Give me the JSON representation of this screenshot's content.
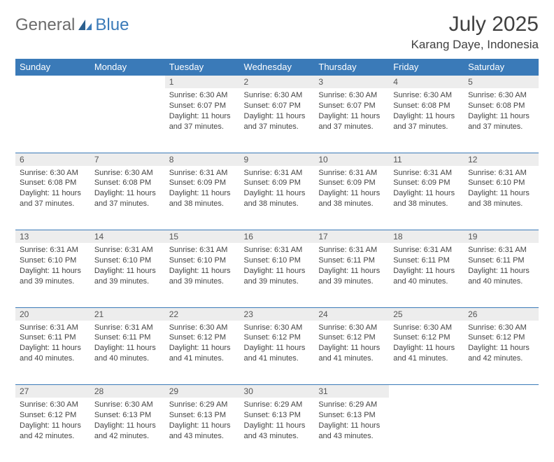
{
  "logo": {
    "text1": "General",
    "text2": "Blue"
  },
  "title": "July 2025",
  "location": "Karang Daye, Indonesia",
  "colors": {
    "header_bg": "#3a7ab8",
    "header_text": "#ffffff",
    "daynum_bg": "#ededed",
    "row_divider": "#3a7ab8",
    "body_text": "#444444",
    "logo_gray": "#6b6b6b",
    "logo_blue": "#3a7ab8"
  },
  "typography": {
    "title_fontsize": 30,
    "location_fontsize": 17,
    "header_fontsize": 13,
    "daynum_fontsize": 12,
    "cell_fontsize": 11
  },
  "day_headers": [
    "Sunday",
    "Monday",
    "Tuesday",
    "Wednesday",
    "Thursday",
    "Friday",
    "Saturday"
  ],
  "weeks": [
    [
      {
        "num": "",
        "lines": [
          "",
          "",
          "",
          ""
        ]
      },
      {
        "num": "",
        "lines": [
          "",
          "",
          "",
          ""
        ]
      },
      {
        "num": "1",
        "lines": [
          "Sunrise: 6:30 AM",
          "Sunset: 6:07 PM",
          "Daylight: 11 hours",
          "and 37 minutes."
        ]
      },
      {
        "num": "2",
        "lines": [
          "Sunrise: 6:30 AM",
          "Sunset: 6:07 PM",
          "Daylight: 11 hours",
          "and 37 minutes."
        ]
      },
      {
        "num": "3",
        "lines": [
          "Sunrise: 6:30 AM",
          "Sunset: 6:07 PM",
          "Daylight: 11 hours",
          "and 37 minutes."
        ]
      },
      {
        "num": "4",
        "lines": [
          "Sunrise: 6:30 AM",
          "Sunset: 6:08 PM",
          "Daylight: 11 hours",
          "and 37 minutes."
        ]
      },
      {
        "num": "5",
        "lines": [
          "Sunrise: 6:30 AM",
          "Sunset: 6:08 PM",
          "Daylight: 11 hours",
          "and 37 minutes."
        ]
      }
    ],
    [
      {
        "num": "6",
        "lines": [
          "Sunrise: 6:30 AM",
          "Sunset: 6:08 PM",
          "Daylight: 11 hours",
          "and 37 minutes."
        ]
      },
      {
        "num": "7",
        "lines": [
          "Sunrise: 6:30 AM",
          "Sunset: 6:08 PM",
          "Daylight: 11 hours",
          "and 37 minutes."
        ]
      },
      {
        "num": "8",
        "lines": [
          "Sunrise: 6:31 AM",
          "Sunset: 6:09 PM",
          "Daylight: 11 hours",
          "and 38 minutes."
        ]
      },
      {
        "num": "9",
        "lines": [
          "Sunrise: 6:31 AM",
          "Sunset: 6:09 PM",
          "Daylight: 11 hours",
          "and 38 minutes."
        ]
      },
      {
        "num": "10",
        "lines": [
          "Sunrise: 6:31 AM",
          "Sunset: 6:09 PM",
          "Daylight: 11 hours",
          "and 38 minutes."
        ]
      },
      {
        "num": "11",
        "lines": [
          "Sunrise: 6:31 AM",
          "Sunset: 6:09 PM",
          "Daylight: 11 hours",
          "and 38 minutes."
        ]
      },
      {
        "num": "12",
        "lines": [
          "Sunrise: 6:31 AM",
          "Sunset: 6:10 PM",
          "Daylight: 11 hours",
          "and 38 minutes."
        ]
      }
    ],
    [
      {
        "num": "13",
        "lines": [
          "Sunrise: 6:31 AM",
          "Sunset: 6:10 PM",
          "Daylight: 11 hours",
          "and 39 minutes."
        ]
      },
      {
        "num": "14",
        "lines": [
          "Sunrise: 6:31 AM",
          "Sunset: 6:10 PM",
          "Daylight: 11 hours",
          "and 39 minutes."
        ]
      },
      {
        "num": "15",
        "lines": [
          "Sunrise: 6:31 AM",
          "Sunset: 6:10 PM",
          "Daylight: 11 hours",
          "and 39 minutes."
        ]
      },
      {
        "num": "16",
        "lines": [
          "Sunrise: 6:31 AM",
          "Sunset: 6:10 PM",
          "Daylight: 11 hours",
          "and 39 minutes."
        ]
      },
      {
        "num": "17",
        "lines": [
          "Sunrise: 6:31 AM",
          "Sunset: 6:11 PM",
          "Daylight: 11 hours",
          "and 39 minutes."
        ]
      },
      {
        "num": "18",
        "lines": [
          "Sunrise: 6:31 AM",
          "Sunset: 6:11 PM",
          "Daylight: 11 hours",
          "and 40 minutes."
        ]
      },
      {
        "num": "19",
        "lines": [
          "Sunrise: 6:31 AM",
          "Sunset: 6:11 PM",
          "Daylight: 11 hours",
          "and 40 minutes."
        ]
      }
    ],
    [
      {
        "num": "20",
        "lines": [
          "Sunrise: 6:31 AM",
          "Sunset: 6:11 PM",
          "Daylight: 11 hours",
          "and 40 minutes."
        ]
      },
      {
        "num": "21",
        "lines": [
          "Sunrise: 6:31 AM",
          "Sunset: 6:11 PM",
          "Daylight: 11 hours",
          "and 40 minutes."
        ]
      },
      {
        "num": "22",
        "lines": [
          "Sunrise: 6:30 AM",
          "Sunset: 6:12 PM",
          "Daylight: 11 hours",
          "and 41 minutes."
        ]
      },
      {
        "num": "23",
        "lines": [
          "Sunrise: 6:30 AM",
          "Sunset: 6:12 PM",
          "Daylight: 11 hours",
          "and 41 minutes."
        ]
      },
      {
        "num": "24",
        "lines": [
          "Sunrise: 6:30 AM",
          "Sunset: 6:12 PM",
          "Daylight: 11 hours",
          "and 41 minutes."
        ]
      },
      {
        "num": "25",
        "lines": [
          "Sunrise: 6:30 AM",
          "Sunset: 6:12 PM",
          "Daylight: 11 hours",
          "and 41 minutes."
        ]
      },
      {
        "num": "26",
        "lines": [
          "Sunrise: 6:30 AM",
          "Sunset: 6:12 PM",
          "Daylight: 11 hours",
          "and 42 minutes."
        ]
      }
    ],
    [
      {
        "num": "27",
        "lines": [
          "Sunrise: 6:30 AM",
          "Sunset: 6:12 PM",
          "Daylight: 11 hours",
          "and 42 minutes."
        ]
      },
      {
        "num": "28",
        "lines": [
          "Sunrise: 6:30 AM",
          "Sunset: 6:13 PM",
          "Daylight: 11 hours",
          "and 42 minutes."
        ]
      },
      {
        "num": "29",
        "lines": [
          "Sunrise: 6:29 AM",
          "Sunset: 6:13 PM",
          "Daylight: 11 hours",
          "and 43 minutes."
        ]
      },
      {
        "num": "30",
        "lines": [
          "Sunrise: 6:29 AM",
          "Sunset: 6:13 PM",
          "Daylight: 11 hours",
          "and 43 minutes."
        ]
      },
      {
        "num": "31",
        "lines": [
          "Sunrise: 6:29 AM",
          "Sunset: 6:13 PM",
          "Daylight: 11 hours",
          "and 43 minutes."
        ]
      },
      {
        "num": "",
        "lines": [
          "",
          "",
          "",
          ""
        ]
      },
      {
        "num": "",
        "lines": [
          "",
          "",
          "",
          ""
        ]
      }
    ]
  ]
}
